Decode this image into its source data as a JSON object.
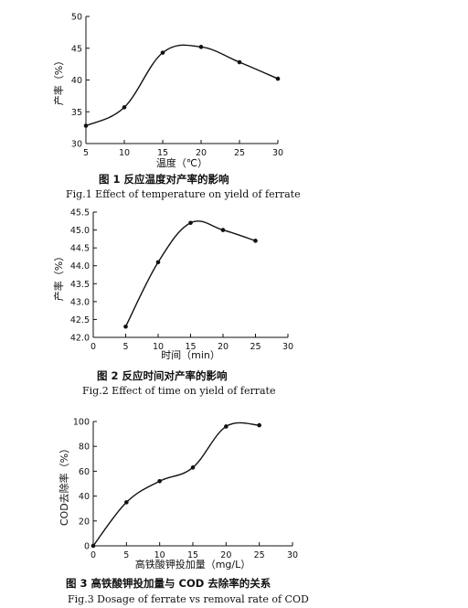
{
  "chart_data": [
    {
      "type": "line",
      "xlabel": "温度（℃）",
      "ylabel": "产率（%）",
      "x": [
        5,
        10,
        15,
        20,
        25,
        30
      ],
      "series": [
        {
          "values": [
            32.8,
            35.7,
            44.3,
            45.2,
            42.8,
            40.2
          ]
        }
      ],
      "xlim": [
        5,
        30
      ],
      "ylim": [
        30,
        50
      ],
      "xticks": [
        5,
        10,
        15,
        20,
        25,
        30
      ],
      "yticks": [
        30,
        35,
        40,
        45,
        50
      ],
      "caption_cn": "图 1  反应温度对产率的影响",
      "caption_en": "Fig.1   Effect of temperature on yield of ferrate"
    },
    {
      "type": "line",
      "xlabel": "时间（min）",
      "ylabel": "产率（%）",
      "x": [
        5,
        10,
        15,
        20,
        25
      ],
      "series": [
        {
          "values": [
            42.3,
            44.1,
            45.2,
            45.0,
            44.7
          ]
        }
      ],
      "xlim": [
        0,
        30
      ],
      "ylim": [
        42.0,
        45.5
      ],
      "xticks": [
        0,
        5,
        10,
        15,
        20,
        25,
        30
      ],
      "yticks": [
        "42.0",
        "42.5",
        "43.0",
        "43.5",
        "44.0",
        "44.5",
        "45.0",
        "45.5"
      ],
      "caption_cn": "图 2  反应时间对产率的影响",
      "caption_en": "Fig.2    Effect of time on yield of ferrate"
    },
    {
      "type": "line",
      "xlabel": "高铁酸钾投加量（mg/L）",
      "ylabel": "COD去除率（%）",
      "x": [
        0,
        5,
        10,
        15,
        20,
        25
      ],
      "series": [
        {
          "values": [
            0,
            35,
            52,
            63,
            96,
            97
          ]
        }
      ],
      "xlim": [
        0,
        30
      ],
      "ylim": [
        0,
        100
      ],
      "xticks": [
        0,
        5,
        10,
        15,
        20,
        25,
        30
      ],
      "yticks": [
        0,
        20,
        40,
        60,
        80,
        100
      ],
      "caption_cn": "图 3  高铁酸钾投加量与 COD 去除率的关系",
      "caption_en": "Fig.3    Dosage of ferrate vs removal rate of COD"
    }
  ]
}
